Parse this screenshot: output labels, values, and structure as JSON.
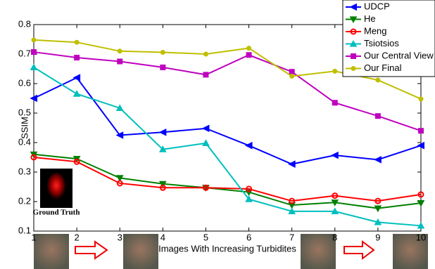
{
  "chart_data": {
    "type": "line",
    "x": [
      1,
      2,
      3,
      4,
      5,
      6,
      7,
      8,
      9,
      10
    ],
    "xlim": [
      1,
      10
    ],
    "xticks": [
      1,
      2,
      3,
      4,
      5,
      6,
      7,
      8,
      9,
      10
    ],
    "ylim": [
      0.1,
      0.8
    ],
    "yticks": [
      0.1,
      0.2,
      0.3,
      0.4,
      0.5,
      0.6,
      0.7,
      0.8
    ],
    "x_label": "Images With Increasing Turbidites",
    "y_label": "SSIM",
    "annotation": "Ground Truth",
    "legend": "top-right",
    "series": [
      {
        "name": "UDCP",
        "color": "#0000ff",
        "marker": "triangle-left",
        "values": [
          0.55,
          0.62,
          0.425,
          0.435,
          0.448,
          0.39,
          0.327,
          0.357,
          0.342,
          0.39
        ]
      },
      {
        "name": "He",
        "color": "#008000",
        "marker": "triangle-down",
        "values": [
          0.36,
          0.345,
          0.28,
          0.26,
          0.247,
          0.232,
          0.188,
          0.197,
          0.177,
          0.195
        ]
      },
      {
        "name": "Meng",
        "color": "#ff0000",
        "marker": "circle-open",
        "values": [
          0.35,
          0.335,
          0.262,
          0.247,
          0.247,
          0.243,
          0.202,
          0.22,
          0.202,
          0.224
        ]
      },
      {
        "name": "Tsiotsios",
        "color": "#00bfbf",
        "marker": "triangle-up",
        "values": [
          0.655,
          0.565,
          0.517,
          0.377,
          0.398,
          0.208,
          0.167,
          0.167,
          0.13,
          0.118
        ]
      },
      {
        "name": "Our Central View",
        "color": "#bf00bf",
        "marker": "square",
        "values": [
          0.707,
          0.688,
          0.675,
          0.655,
          0.63,
          0.697,
          0.64,
          0.535,
          0.49,
          0.44
        ]
      },
      {
        "name": "Our Final",
        "color": "#bfbf00",
        "marker": "circle",
        "values": [
          0.748,
          0.74,
          0.71,
          0.706,
          0.7,
          0.72,
          0.625,
          0.642,
          0.612,
          0.548
        ]
      }
    ]
  }
}
